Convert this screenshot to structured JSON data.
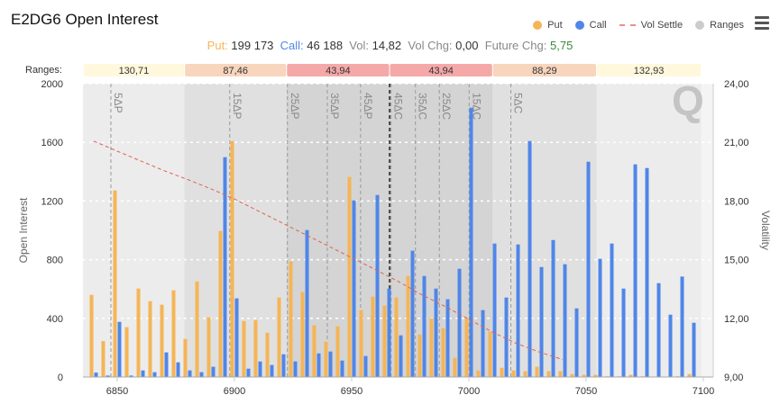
{
  "header": {
    "title": "E2DG6 Open Interest",
    "menu_icon": "hamburger-icon"
  },
  "legend": [
    {
      "label": "Put",
      "color": "#f5b556"
    },
    {
      "label": "Call",
      "color": "#4f86e8"
    },
    {
      "label": "Vol Settle",
      "color": "#e8908a"
    },
    {
      "label": "Ranges",
      "color": "#cccccc"
    }
  ],
  "stats": {
    "put_label": "Put:",
    "put_value": "199 173",
    "call_label": "Call:",
    "call_value": "46 188",
    "vol_label": "Vol:",
    "vol_value": "14,82",
    "volchg_label": "Vol Chg:",
    "volchg_value": "0,00",
    "futchg_label": "Future Chg:",
    "futchg_value": "5,75",
    "colors": {
      "put": "#f5b556",
      "call": "#4f86e8",
      "futchg": "#3a8a3a"
    }
  },
  "ranges": {
    "label": "Ranges:",
    "center": 6966.16,
    "items": [
      {
        "text": "130,71",
        "from": -130.71,
        "to": -87.46,
        "color": "#fff8dc",
        "shade": "#ececec"
      },
      {
        "text": "87,46",
        "from": -87.46,
        "to": -43.94,
        "color": "#f8d5bd",
        "shade": "#e0e0e0"
      },
      {
        "text": "43,94",
        "from": -43.94,
        "to": 0,
        "color": "#f4a9a8",
        "shade": "#d4d4d4"
      },
      {
        "text": "43,94",
        "from": 0,
        "to": 43.94,
        "color": "#f4a9a8",
        "shade": "#d4d4d4"
      },
      {
        "text": "88,29",
        "from": 43.94,
        "to": 88.29,
        "color": "#f8d5bd",
        "shade": "#e0e0e0"
      },
      {
        "text": "132,93",
        "from": 88.29,
        "to": 132.93,
        "color": "#fff8dc",
        "shade": "#ececec"
      }
    ]
  },
  "chart_data": {
    "type": "bar",
    "x_range": [
      6835,
      7105
    ],
    "x_ticks": [
      6850,
      6900,
      6950,
      7000,
      7050,
      7100
    ],
    "ylabel": "Open Interest",
    "ylim": [
      0,
      2000
    ],
    "y_ticks": [
      0,
      400,
      800,
      1200,
      1600,
      2000
    ],
    "y2label": "Volatility",
    "y2lim": [
      9,
      24
    ],
    "y2_ticks": [
      "9,00",
      "12,00",
      "15,00",
      "18,00",
      "21,00",
      "24,00"
    ],
    "grid": true,
    "strikes": [
      6840,
      6845,
      6850,
      6855,
      6860,
      6865,
      6870,
      6875,
      6880,
      6885,
      6890,
      6895,
      6900,
      6905,
      6910,
      6915,
      6920,
      6925,
      6930,
      6935,
      6940,
      6945,
      6950,
      6955,
      6960,
      6965,
      6970,
      6975,
      6980,
      6985,
      6990,
      6995,
      7000,
      7005,
      7010,
      7015,
      7020,
      7025,
      7030,
      7035,
      7040,
      7045,
      7050,
      7055,
      7060,
      7065,
      7070,
      7075,
      7080,
      7085,
      7090,
      7095
    ],
    "series": [
      {
        "name": "Put",
        "color": "#f5b556",
        "values": [
          560,
          245,
          1272,
          340,
          603,
          517,
          493,
          591,
          260,
          652,
          407,
          996,
          1609,
          382,
          388,
          302,
          542,
          787,
          579,
          352,
          241,
          346,
          1364,
          456,
          548,
          487,
          542,
          689,
          290,
          401,
          333,
          131,
          401,
          45,
          309,
          63,
          45,
          40,
          70,
          40,
          40,
          20,
          15,
          15,
          5,
          5,
          15,
          5,
          2,
          2,
          5,
          20
        ]
      },
      {
        "name": "Call",
        "color": "#4f86e8",
        "values": [
          30,
          10,
          376,
          10,
          45,
          33,
          168,
          100,
          45,
          33,
          70,
          1499,
          536,
          57,
          106,
          82,
          155,
          106,
          1002,
          161,
          174,
          112,
          1204,
          143,
          1241,
          603,
          284,
          861,
          689,
          603,
          530,
          738,
          1836,
          456,
          910,
          542,
          904,
          1609,
          750,
          934,
          769,
          468,
          1468,
          806,
          910,
          603,
          1450,
          1425,
          640,
          425,
          685,
          370
        ]
      }
    ],
    "vol_settle": {
      "name": "Vol Settle",
      "x": [
        6840,
        6850,
        6860,
        6870,
        6880,
        6890,
        6900,
        6910,
        6920,
        6930,
        6940,
        6950,
        6960,
        6970,
        6980,
        6990,
        7000,
        7010,
        7020,
        7030,
        7040
      ],
      "y": [
        21.06,
        20.55,
        20.05,
        19.55,
        19.1,
        18.62,
        18.1,
        17.5,
        16.9,
        16.3,
        15.7,
        15.1,
        14.5,
        13.88,
        13.2,
        12.6,
        11.95,
        11.3,
        10.73,
        10.28,
        9.89
      ]
    },
    "delta_lines": [
      {
        "label": "5ΔP",
        "x": 6847.3
      },
      {
        "label": "15ΔP",
        "x": 6898
      },
      {
        "label": "25ΔP",
        "x": 6922.6
      },
      {
        "label": "35ΔP",
        "x": 6939.6
      },
      {
        "label": "45ΔP",
        "x": 6953.8
      },
      {
        "label": "45ΔC",
        "x": 6966.8
      },
      {
        "label": "35ΔC",
        "x": 6977.2
      },
      {
        "label": "25ΔC",
        "x": 6987.4
      },
      {
        "label": "15ΔC",
        "x": 7000.1
      },
      {
        "label": "5ΔC",
        "x": 7017.9
      }
    ],
    "atm_line": {
      "x": 6966.16
    }
  }
}
